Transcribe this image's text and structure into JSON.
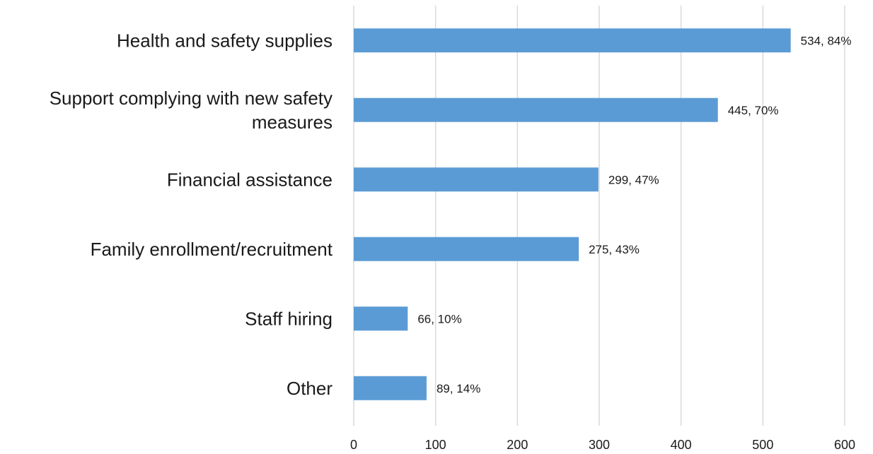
{
  "chart_data": {
    "type": "bar",
    "orientation": "horizontal",
    "categories": [
      "Health and safety supplies",
      "Support complying with new safety measures",
      "Financial assistance",
      "Family enrollment/recruitment",
      "Staff hiring",
      "Other"
    ],
    "category_label_lines": [
      [
        "Health and safety supplies"
      ],
      [
        "Support complying with new safety",
        "measures"
      ],
      [
        "Financial assistance"
      ],
      [
        "Family enrollment/recruitment"
      ],
      [
        "Staff hiring"
      ],
      [
        "Other"
      ]
    ],
    "values": [
      534,
      445,
      299,
      275,
      66,
      89
    ],
    "percentages": [
      "84%",
      "70%",
      "47%",
      "43%",
      "10%",
      "14%"
    ],
    "data_labels": [
      "534, 84%",
      "445, 70%",
      "299, 47%",
      "275, 43%",
      "66, 10%",
      "89, 14%"
    ],
    "xlim": [
      0,
      600
    ],
    "xticks": [
      0,
      100,
      200,
      300,
      400,
      500,
      600
    ],
    "xtick_labels": [
      "0",
      "100",
      "200",
      "300",
      "400",
      "500",
      "600"
    ],
    "grid": true,
    "title": "",
    "xlabel": "",
    "ylabel": "",
    "bar_color": "#5b9bd5",
    "grid_color": "#d9d9d9"
  }
}
